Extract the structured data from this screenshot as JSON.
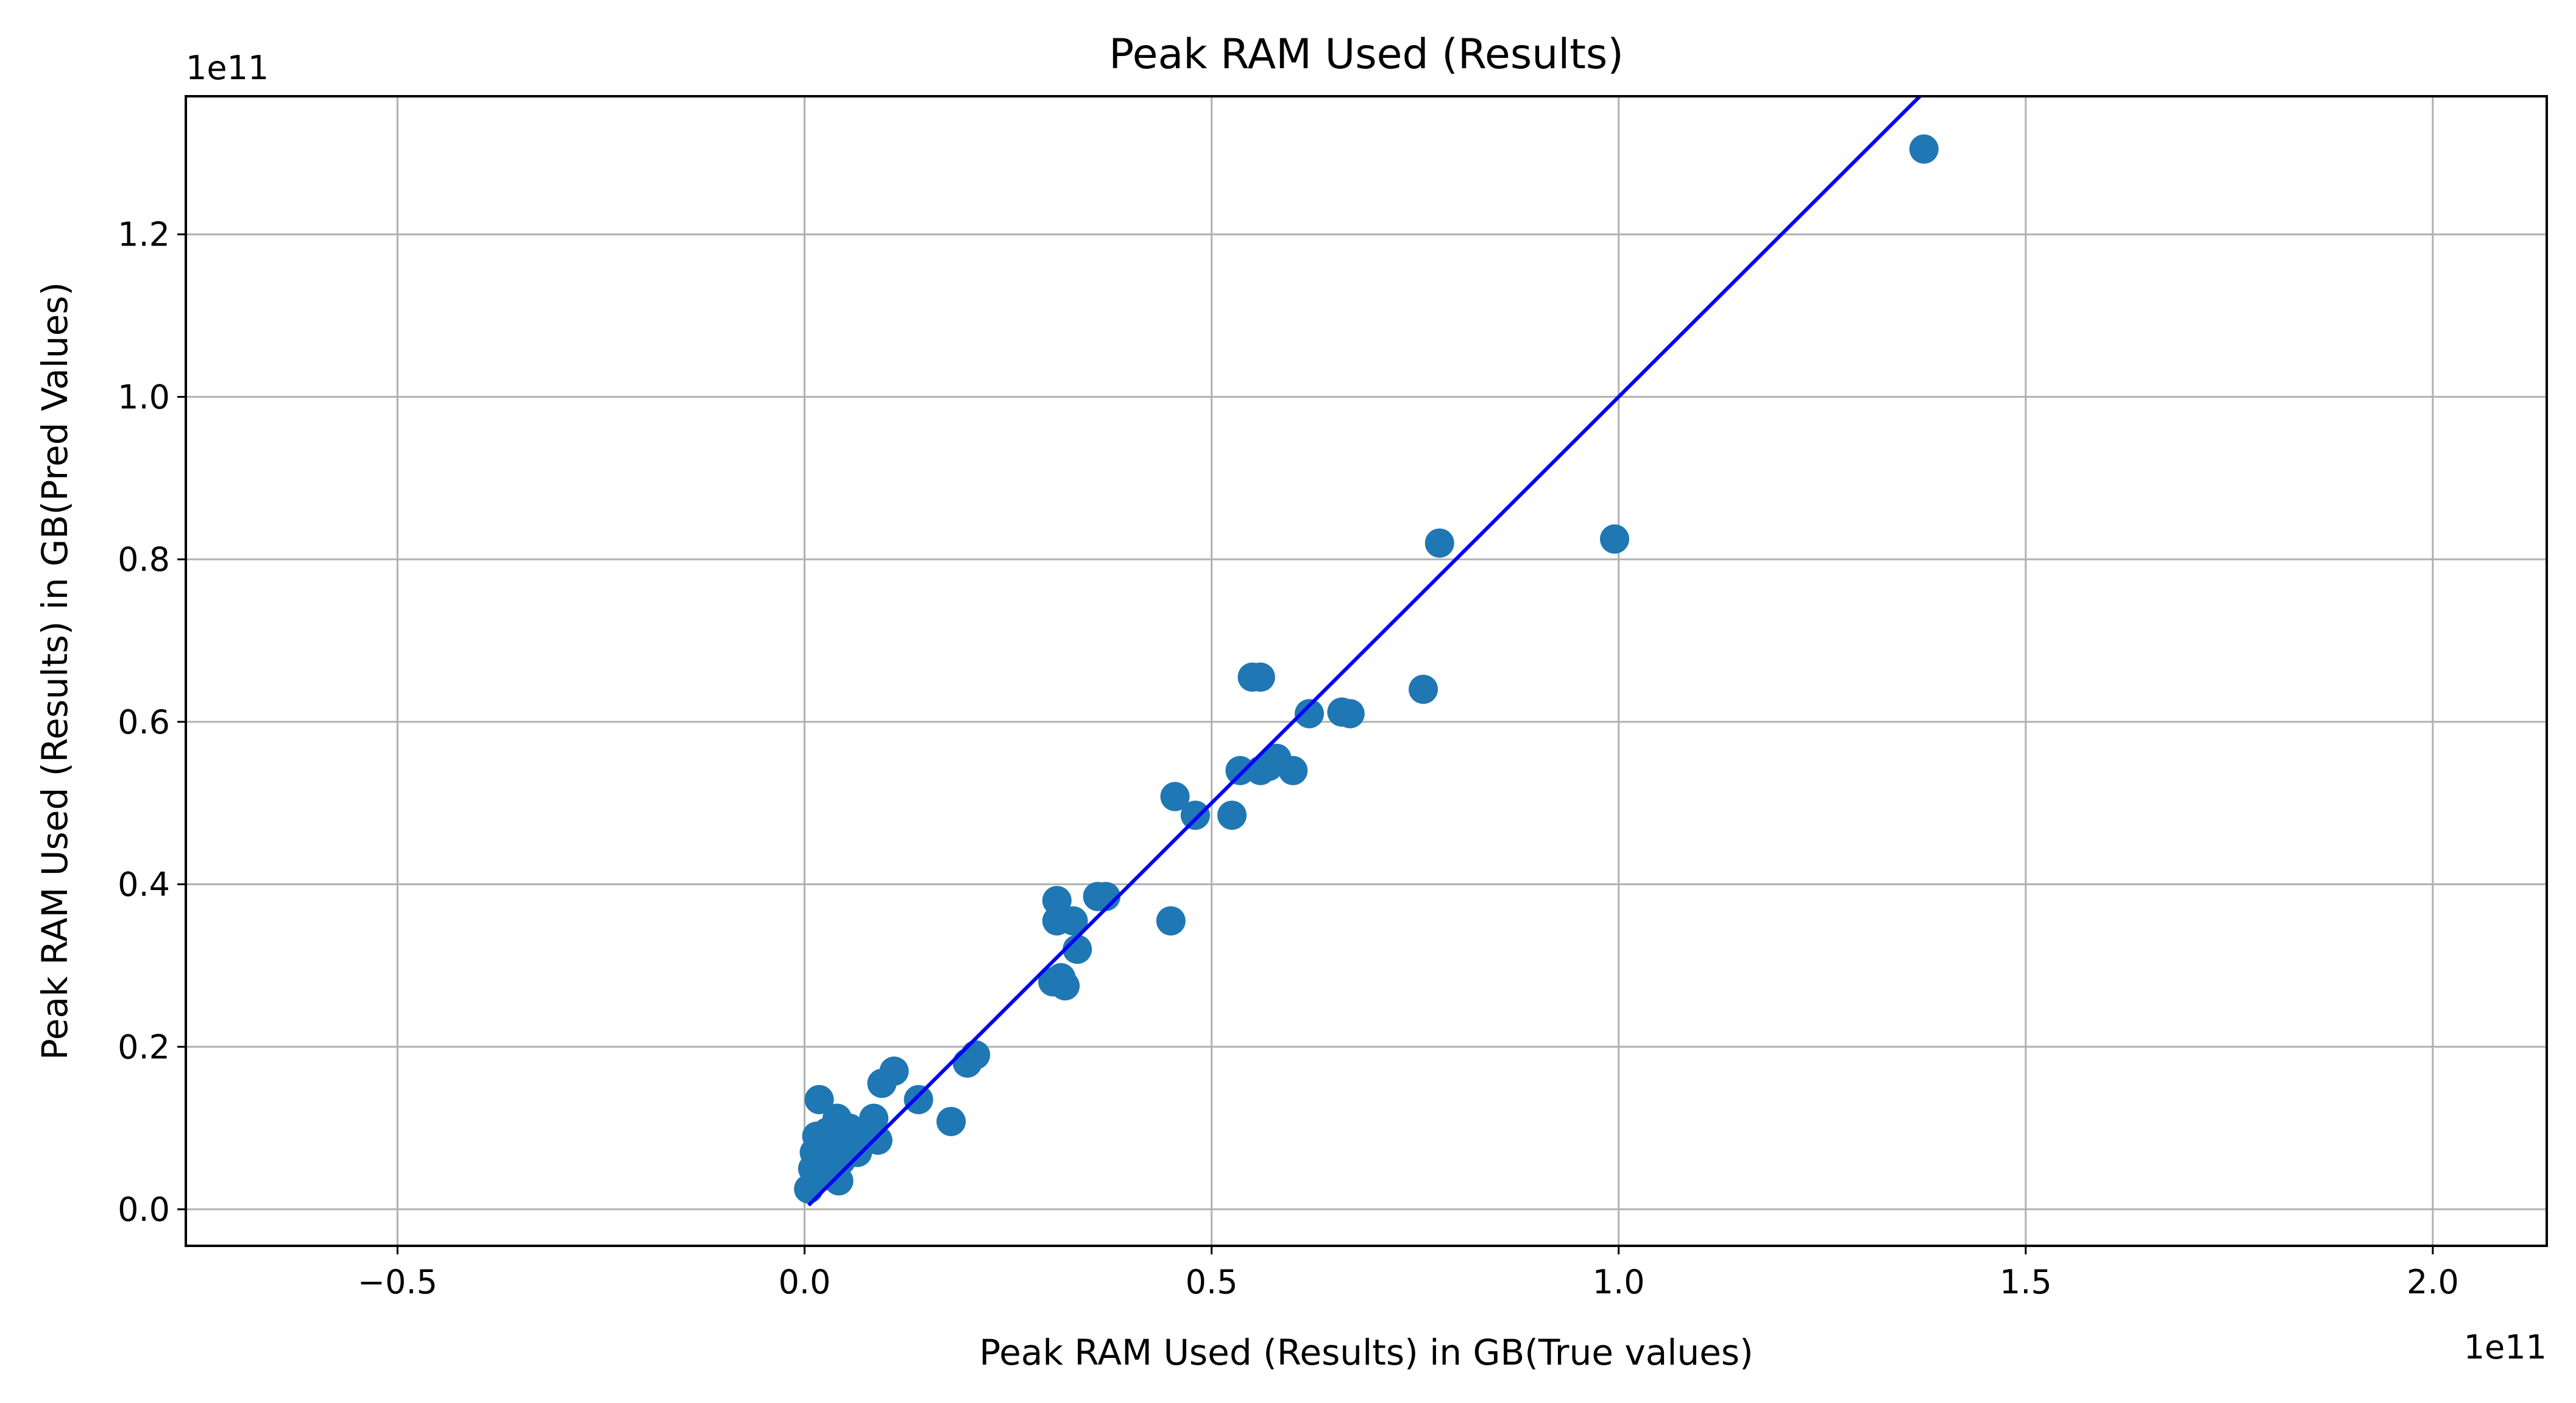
{
  "chart_data": {
    "type": "scatter",
    "title": "Peak RAM Used (Results)",
    "xlabel": "Peak RAM Used (Results) in GB(True values)",
    "ylabel": "Peak RAM Used (Results) in GB(Pred Values)",
    "x_offset_text": "1e11",
    "y_offset_text": "1e11",
    "xlim": [
      -0.76,
      2.14
    ],
    "ylim": [
      -0.045,
      1.37
    ],
    "x_ticks": [
      -0.5,
      0.0,
      0.5,
      1.0,
      1.5,
      2.0
    ],
    "x_tick_labels": [
      "−0.5",
      "0.0",
      "0.5",
      "1.0",
      "1.5",
      "2.0"
    ],
    "y_ticks": [
      0.0,
      0.2,
      0.4,
      0.6,
      0.8,
      1.0,
      1.2
    ],
    "y_tick_labels": [
      "0.0",
      "0.2",
      "0.4",
      "0.6",
      "0.8",
      "1.0",
      "1.2"
    ],
    "grid": true,
    "colors": {
      "points": "#1f77b4",
      "line": "#0000ff",
      "grid": "#b0b0b0"
    },
    "reference_line": {
      "x": [
        0.005,
        1.37
      ],
      "y": [
        0.005,
        1.37
      ]
    },
    "points": [
      {
        "x": 0.005,
        "y": 0.025
      },
      {
        "x": 0.01,
        "y": 0.05
      },
      {
        "x": 0.012,
        "y": 0.07
      },
      {
        "x": 0.015,
        "y": 0.09
      },
      {
        "x": 0.018,
        "y": 0.135
      },
      {
        "x": 0.02,
        "y": 0.04
      },
      {
        "x": 0.022,
        "y": 0.06
      },
      {
        "x": 0.025,
        "y": 0.08
      },
      {
        "x": 0.028,
        "y": 0.095
      },
      {
        "x": 0.03,
        "y": 0.05
      },
      {
        "x": 0.032,
        "y": 0.07
      },
      {
        "x": 0.035,
        "y": 0.085
      },
      {
        "x": 0.038,
        "y": 0.1
      },
      {
        "x": 0.04,
        "y": 0.112
      },
      {
        "x": 0.042,
        "y": 0.035
      },
      {
        "x": 0.045,
        "y": 0.06
      },
      {
        "x": 0.048,
        "y": 0.09
      },
      {
        "x": 0.05,
        "y": 0.075
      },
      {
        "x": 0.055,
        "y": 0.1
      },
      {
        "x": 0.06,
        "y": 0.085
      },
      {
        "x": 0.065,
        "y": 0.07
      },
      {
        "x": 0.07,
        "y": 0.095
      },
      {
        "x": 0.08,
        "y": 0.1
      },
      {
        "x": 0.085,
        "y": 0.112
      },
      {
        "x": 0.09,
        "y": 0.085
      },
      {
        "x": 0.095,
        "y": 0.155
      },
      {
        "x": 0.11,
        "y": 0.17
      },
      {
        "x": 0.14,
        "y": 0.135
      },
      {
        "x": 0.18,
        "y": 0.108
      },
      {
        "x": 0.2,
        "y": 0.18
      },
      {
        "x": 0.21,
        "y": 0.19
      },
      {
        "x": 0.305,
        "y": 0.28
      },
      {
        "x": 0.31,
        "y": 0.38
      },
      {
        "x": 0.31,
        "y": 0.355
      },
      {
        "x": 0.315,
        "y": 0.285
      },
      {
        "x": 0.32,
        "y": 0.275
      },
      {
        "x": 0.33,
        "y": 0.355
      },
      {
        "x": 0.335,
        "y": 0.32
      },
      {
        "x": 0.36,
        "y": 0.385
      },
      {
        "x": 0.37,
        "y": 0.385
      },
      {
        "x": 0.45,
        "y": 0.355
      },
      {
        "x": 0.455,
        "y": 0.508
      },
      {
        "x": 0.48,
        "y": 0.485
      },
      {
        "x": 0.525,
        "y": 0.485
      },
      {
        "x": 0.535,
        "y": 0.54
      },
      {
        "x": 0.55,
        "y": 0.655
      },
      {
        "x": 0.56,
        "y": 0.655
      },
      {
        "x": 0.56,
        "y": 0.54
      },
      {
        "x": 0.57,
        "y": 0.545
      },
      {
        "x": 0.58,
        "y": 0.555
      },
      {
        "x": 0.6,
        "y": 0.54
      },
      {
        "x": 0.62,
        "y": 0.61
      },
      {
        "x": 0.66,
        "y": 0.612
      },
      {
        "x": 0.67,
        "y": 0.61
      },
      {
        "x": 0.76,
        "y": 0.64
      },
      {
        "x": 0.78,
        "y": 0.82
      },
      {
        "x": 0.995,
        "y": 0.825
      },
      {
        "x": 1.375,
        "y": 1.305
      }
    ]
  }
}
